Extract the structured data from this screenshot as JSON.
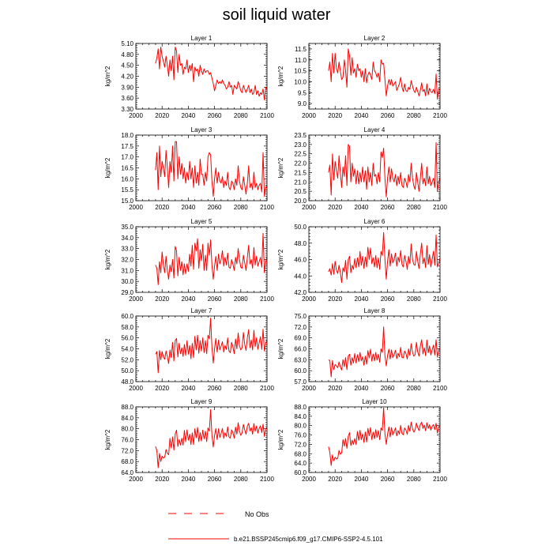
{
  "title": "soil liquid water",
  "colors": {
    "series": "#ff0000",
    "axis": "#000000"
  },
  "legend": {
    "obs_label": "No Obs",
    "model_label": "b.e21.BSSP245cmip6.f09_g17.CMIP6-SSP2-4.5.101"
  },
  "chart_data": [
    {
      "type": "line",
      "title": "Layer 1",
      "xlabel": "",
      "ylabel": "kg/m^2",
      "xlim": [
        2000,
        2100
      ],
      "xticks": [
        2000,
        2020,
        2040,
        2060,
        2080,
        2100
      ],
      "ylim": [
        3.3,
        5.1
      ],
      "yticks": [
        3.3,
        3.6,
        3.9,
        4.2,
        4.5,
        4.8,
        5.1
      ],
      "ydecimals": 2,
      "x_start": 2015,
      "y": [
        4.55,
        4.7,
        4.95,
        4.4,
        5.0,
        4.75,
        4.6,
        4.45,
        4.75,
        4.5,
        4.2,
        4.65,
        4.35,
        4.75,
        4.1,
        5.0,
        4.9,
        4.3,
        4.8,
        4.5,
        4.55,
        4.25,
        4.45,
        4.4,
        4.65,
        4.3,
        4.5,
        4.35,
        4.55,
        4.05,
        4.45,
        4.35,
        4.4,
        4.2,
        4.5,
        4.35,
        4.25,
        4.4,
        4.3,
        4.35,
        4.35,
        4.25,
        4.3,
        4.15,
        4.0,
        3.8,
        3.95,
        4.1,
        4.0,
        4.05,
        4.0,
        4.1,
        4.0,
        3.95,
        3.85,
        3.9,
        4.05,
        3.9,
        3.95,
        3.7,
        3.95,
        3.9,
        3.85,
        4.05,
        3.95,
        3.8,
        3.75,
        3.95,
        3.85,
        3.75,
        3.85,
        3.95,
        3.75,
        3.85,
        3.7,
        3.75,
        3.95,
        3.7,
        3.8,
        3.65,
        3.75,
        3.7,
        3.85,
        3.55,
        3.9,
        3.85
      ]
    },
    {
      "type": "line",
      "title": "Layer 2",
      "xlabel": "",
      "ylabel": "kg/m^2",
      "xlim": [
        2000,
        2100
      ],
      "xticks": [
        2000,
        2020,
        2040,
        2060,
        2080,
        2100
      ],
      "ylim": [
        8.75,
        11.75
      ],
      "yticks": [
        9.0,
        9.5,
        10.0,
        10.5,
        11.0,
        11.5
      ],
      "ydecimals": 1,
      "x_start": 2015,
      "y": [
        10.5,
        10.9,
        10.0,
        11.3,
        10.4,
        11.3,
        10.6,
        10.4,
        10.9,
        10.5,
        10.1,
        10.2,
        11.0,
        10.5,
        9.75,
        11.5,
        11.2,
        10.3,
        11.1,
        10.4,
        10.6,
        10.2,
        10.8,
        10.5,
        10.6,
        10.2,
        10.5,
        10.0,
        10.6,
        9.95,
        10.3,
        10.45,
        10.3,
        10.1,
        10.9,
        10.5,
        10.4,
        10.2,
        10.4,
        10.0,
        11.0,
        10.8,
        10.85,
        10.1,
        9.35,
        9.8,
        10.1,
        9.85,
        10.1,
        9.8,
        9.9,
        10.0,
        9.6,
        9.75,
        9.9,
        10.2,
        9.75,
        9.55,
        9.9,
        9.6,
        9.55,
        9.75,
        9.65,
        10.05,
        9.8,
        9.6,
        9.5,
        9.75,
        9.55,
        9.35,
        9.6,
        9.95,
        9.55,
        9.65,
        9.35,
        9.9,
        9.4,
        9.7,
        9.55,
        9.5,
        9.65,
        9.45,
        10.35,
        9.2,
        9.7,
        9.6
      ]
    },
    {
      "type": "line",
      "title": "Layer 3",
      "xlabel": "",
      "ylabel": "kg/m^2",
      "xlim": [
        2000,
        2100
      ],
      "xticks": [
        2000,
        2020,
        2040,
        2060,
        2080,
        2100
      ],
      "ylim": [
        15.0,
        18.0
      ],
      "yticks": [
        15.0,
        15.5,
        16.0,
        16.5,
        17.0,
        17.5,
        18.0
      ],
      "ydecimals": 1,
      "x_start": 2015,
      "y": [
        16.4,
        17.2,
        15.5,
        17.5,
        16.1,
        16.8,
        16.5,
        16.1,
        17.3,
        16.5,
        15.6,
        16.8,
        16.3,
        17.5,
        15.9,
        17.7,
        17.7,
        16.0,
        17.0,
        16.2,
        16.7,
        16.0,
        16.5,
        15.8,
        16.3,
        15.95,
        16.8,
        16.0,
        16.5,
        15.6,
        16.6,
        15.8,
        16.3,
        15.7,
        16.9,
        16.2,
        16.2,
        15.7,
        16.3,
        15.9,
        17.0,
        17.2,
        17.1,
        15.9,
        15.2,
        16.0,
        16.5,
        15.8,
        16.3,
        15.9,
        15.8,
        16.1,
        15.6,
        15.9,
        15.7,
        16.3,
        15.6,
        15.5,
        15.9,
        15.8,
        15.5,
        16.0,
        15.7,
        16.6,
        15.9,
        15.6,
        15.5,
        16.1,
        15.7,
        15.3,
        15.8,
        16.6,
        15.6,
        15.8,
        15.5,
        16.3,
        15.6,
        15.8,
        15.5,
        15.7,
        15.8,
        15.4,
        17.2,
        15.2,
        15.6,
        15.7
      ]
    },
    {
      "type": "line",
      "title": "Layer 4",
      "xlabel": "",
      "ylabel": "kg/m^2",
      "xlim": [
        2000,
        2100
      ],
      "xticks": [
        2000,
        2020,
        2040,
        2060,
        2080,
        2100
      ],
      "ylim": [
        20.0,
        23.5
      ],
      "yticks": [
        20.0,
        20.5,
        21.0,
        21.5,
        22.0,
        22.5,
        23.0,
        23.5
      ],
      "ydecimals": 1,
      "x_start": 2015,
      "y": [
        21.5,
        21.9,
        20.3,
        22.5,
        21.1,
        22.1,
        21.6,
        21.2,
        22.4,
        21.5,
        20.7,
        21.8,
        21.3,
        22.4,
        20.8,
        23.0,
        22.9,
        21.0,
        22.0,
        21.3,
        21.7,
        20.9,
        21.6,
        20.9,
        21.5,
        21.0,
        21.8,
        21.0,
        21.6,
        20.6,
        21.8,
        21.0,
        21.5,
        20.8,
        22.0,
        21.3,
        21.4,
        20.9,
        21.5,
        21.0,
        22.6,
        22.3,
        22.8,
        21.2,
        20.2,
        21.2,
        21.8,
        21.0,
        21.7,
        21.2,
        21.0,
        21.4,
        20.8,
        21.3,
        20.9,
        21.5,
        20.8,
        20.7,
        21.2,
        21.0,
        20.7,
        21.4,
        21.0,
        22.0,
        21.2,
        20.8,
        20.6,
        21.5,
        21.0,
        20.5,
        21.2,
        22.0,
        20.9,
        21.2,
        20.8,
        21.8,
        20.9,
        21.3,
        20.8,
        21.0,
        21.2,
        20.7,
        23.1,
        20.5,
        21.0,
        21.2
      ]
    },
    {
      "type": "line",
      "title": "Layer 5",
      "xlabel": "",
      "ylabel": "kg/m^2",
      "xlim": [
        2000,
        2100
      ],
      "xticks": [
        2000,
        2020,
        2040,
        2060,
        2080,
        2100
      ],
      "ylim": [
        29.0,
        35.0
      ],
      "yticks": [
        29.0,
        30.0,
        31.0,
        32.0,
        33.0,
        34.0,
        35.0
      ],
      "ydecimals": 1,
      "x_start": 2015,
      "y": [
        31.5,
        31.2,
        29.7,
        31.8,
        30.8,
        32.7,
        31.5,
        30.8,
        32.3,
        31.0,
        30.2,
        31.5,
        30.9,
        32.0,
        30.3,
        33.2,
        32.8,
        30.5,
        32.2,
        31.0,
        31.8,
        30.6,
        31.6,
        30.7,
        31.6,
        30.9,
        32.5,
        31.4,
        33.3,
        31.1,
        33.5,
        32.8,
        33.9,
        31.2,
        32.9,
        31.9,
        33.4,
        31.0,
        32.4,
        31.0,
        33.5,
        32.4,
        33.8,
        31.5,
        30.2,
        31.4,
        32.3,
        31.0,
        32.5,
        31.6,
        32.0,
        32.8,
        31.4,
        32.2,
        31.5,
        32.6,
        31.3,
        31.2,
        32.0,
        31.6,
        31.0,
        32.2,
        31.6,
        33.0,
        32.0,
        31.3,
        31.2,
        32.4,
        31.7,
        31.0,
        32.2,
        33.3,
        31.6,
        32.0,
        31.2,
        33.1,
        31.5,
        32.3,
        31.4,
        31.8,
        32.2,
        31.3,
        34.4,
        30.8,
        31.8,
        32.2
      ]
    },
    {
      "type": "line",
      "title": "Layer 6",
      "xlabel": "",
      "ylabel": "kg/m^2",
      "xlim": [
        2000,
        2100
      ],
      "xticks": [
        2000,
        2020,
        2040,
        2060,
        2080,
        2100
      ],
      "ylim": [
        42.0,
        50.0
      ],
      "yticks": [
        42.0,
        44.0,
        46.0,
        48.0,
        50.0
      ],
      "ydecimals": 1,
      "x_start": 2015,
      "y": [
        44.5,
        44.9,
        44.1,
        45.5,
        44.2,
        45.8,
        44.7,
        44.3,
        45.3,
        44.4,
        43.2,
        45.0,
        44.5,
        45.9,
        43.6,
        46.0,
        46.4,
        44.4,
        45.3,
        44.8,
        46.1,
        45.0,
        46.2,
        45.1,
        47.0,
        45.3,
        46.4,
        44.9,
        46.3,
        45.1,
        47.5,
        46.0,
        47.4,
        45.5,
        46.2,
        45.1,
        46.5,
        45.0,
        46.2,
        44.8,
        47.0,
        46.5,
        49.3,
        46.0,
        43.6,
        45.8,
        47.2,
        45.2,
        46.7,
        45.6,
        46.0,
        46.8,
        45.2,
        46.3,
        45.7,
        47.1,
        45.4,
        45.1,
        46.5,
        45.8,
        44.8,
        46.4,
        45.5,
        47.9,
        46.0,
        45.4,
        45.3,
        47.0,
        45.8,
        44.9,
        46.7,
        48.0,
        45.5,
        46.2,
        45.0,
        47.7,
        45.4,
        46.6,
        45.1,
        46.0,
        47.0,
        45.3,
        49.0,
        45.1,
        45.6,
        46.2
      ]
    },
    {
      "type": "line",
      "title": "Layer 7",
      "xlabel": "",
      "ylabel": "kg/m^2",
      "xlim": [
        2000,
        2100
      ],
      "xticks": [
        2000,
        2020,
        2040,
        2060,
        2080,
        2100
      ],
      "ylim": [
        48.0,
        60.0
      ],
      "yticks": [
        48.0,
        50.0,
        52.0,
        54.0,
        56.0,
        58.0,
        60.0
      ],
      "ydecimals": 1,
      "x_start": 2015,
      "y": [
        53.0,
        53.5,
        49.6,
        53.7,
        52.0,
        53.5,
        52.5,
        52.1,
        53.6,
        52.6,
        51.3,
        53.8,
        52.4,
        55.2,
        51.8,
        55.5,
        55.9,
        52.5,
        55.0,
        53.1,
        54.2,
        52.6,
        54.8,
        52.8,
        55.5,
        53.0,
        54.6,
        52.2,
        55.0,
        52.4,
        56.3,
        53.8,
        56.5,
        53.2,
        55.5,
        53.6,
        56.0,
        53.3,
        55.5,
        53.1,
        56.5,
        55.8,
        59.6,
        54.3,
        51.4,
        54.0,
        55.9,
        53.4,
        55.6,
        53.8,
        54.5,
        55.3,
        53.4,
        54.6,
        53.9,
        56.0,
        53.6,
        53.3,
        55.2,
        54.4,
        53.1,
        55.8,
        54.0,
        56.9,
        54.6,
        53.8,
        54.2,
        57.0,
        54.8,
        53.7,
        56.0,
        57.5,
        54.2,
        55.6,
        53.8,
        57.4,
        54.4,
        56.0,
        53.9,
        55.1,
        56.2,
        53.9,
        57.6,
        53.6,
        55.0,
        55.6
      ]
    },
    {
      "type": "line",
      "title": "Layer 8",
      "xlabel": "",
      "ylabel": "kg/m^2",
      "xlim": [
        2000,
        2100
      ],
      "xticks": [
        2000,
        2020,
        2040,
        2060,
        2080,
        2100
      ],
      "ylim": [
        57.0,
        75.0
      ],
      "yticks": [
        57.0,
        60.0,
        63.0,
        66.0,
        69.0,
        72.0,
        75.0
      ],
      "ydecimals": 1,
      "x_start": 2015,
      "y": [
        63.0,
        62.7,
        58.3,
        62.8,
        60.3,
        61.7,
        61.3,
        60.8,
        62.4,
        61.0,
        60.2,
        63.0,
        61.1,
        63.6,
        60.3,
        64.0,
        64.5,
        61.5,
        63.6,
        62.1,
        64.7,
        62.1,
        64.4,
        62.5,
        65.0,
        62.7,
        63.8,
        61.5,
        64.0,
        61.8,
        65.5,
        63.5,
        65.9,
        62.6,
        64.6,
        62.7,
        65.0,
        62.9,
        64.5,
        62.3,
        66.0,
        65.0,
        72.0,
        64.1,
        61.3,
        64.2,
        65.9,
        63.2,
        65.7,
        63.6,
        64.4,
        65.6,
        63.3,
        64.8,
        63.8,
        66.4,
        63.6,
        63.5,
        65.4,
        64.7,
        63.2,
        66.0,
        64.2,
        67.4,
        65.0,
        64.0,
        64.4,
        67.8,
        65.1,
        64.0,
        66.8,
        68.5,
        64.6,
        66.3,
        64.1,
        68.4,
        64.9,
        66.8,
        64.3,
        65.7,
        67.0,
        64.3,
        68.5,
        63.7,
        65.6,
        66.3
      ]
    },
    {
      "type": "line",
      "title": "Layer 9",
      "xlabel": "",
      "ylabel": "kg/m^2",
      "xlim": [
        2000,
        2100
      ],
      "xticks": [
        2000,
        2020,
        2040,
        2060,
        2080,
        2100
      ],
      "ylim": [
        64.0,
        88.0
      ],
      "yticks": [
        64.0,
        68.0,
        72.0,
        76.0,
        80.0,
        84.0,
        88.0
      ],
      "ydecimals": 1,
      "x_start": 2015,
      "y": [
        73.5,
        72.0,
        65.7,
        71.0,
        68.0,
        70.0,
        69.3,
        69.6,
        72.4,
        71.0,
        70.5,
        76.5,
        73.0,
        77.0,
        72.2,
        78.0,
        79.5,
        73.5,
        76.0,
        74.0,
        76.5,
        74.0,
        79.4,
        75.3,
        79.6,
        75.8,
        78.0,
        74.2,
        78.5,
        74.2,
        80.0,
        76.7,
        80.5,
        75.3,
        78.6,
        75.5,
        79.5,
        76.3,
        79.1,
        75.3,
        80.3,
        79.1,
        87.0,
        77.6,
        73.3,
        77.5,
        80.1,
        76.0,
        80.0,
        76.8,
        78.3,
        80.1,
        76.5,
        78.5,
        77.2,
        80.7,
        77.0,
        76.6,
        79.6,
        78.6,
        76.5,
        80.6,
        78.0,
        82.2,
        79.2,
        77.6,
        78.5,
        81.6,
        79.6,
        78.0,
        81.0,
        82.0,
        79.2,
        80.4,
        78.0,
        81.9,
        79.1,
        81.0,
        78.4,
        80.1,
        81.1,
        78.6,
        81.7,
        77.2,
        80.0,
        80.4
      ]
    },
    {
      "type": "line",
      "title": "Layer 10",
      "xlabel": "",
      "ylabel": "kg/m^2",
      "xlim": [
        2000,
        2100
      ],
      "xticks": [
        2000,
        2020,
        2040,
        2060,
        2080,
        2100
      ],
      "ylim": [
        60.0,
        88.0
      ],
      "yticks": [
        60.0,
        64.0,
        68.0,
        72.0,
        76.0,
        80.0,
        84.0,
        88.0
      ],
      "ydecimals": 1,
      "x_start": 2015,
      "y": [
        71.0,
        68.5,
        63.0,
        67.5,
        65.0,
        66.5,
        65.7,
        66.0,
        69.4,
        67.8,
        68.4,
        74.0,
        71.2,
        74.5,
        70.3,
        75.4,
        77.0,
        71.5,
        73.8,
        72.0,
        74.5,
        71.9,
        77.5,
        73.7,
        78.0,
        74.0,
        76.5,
        72.8,
        77.3,
        73.0,
        78.8,
        75.6,
        79.2,
        74.0,
        77.2,
        74.4,
        78.3,
        75.0,
        77.9,
        74.0,
        79.0,
        78.0,
        87.6,
        76.5,
        72.0,
        76.4,
        79.4,
        75.2,
        79.2,
        76.0,
        77.5,
        79.0,
        75.6,
        77.9,
        76.4,
        80.1,
        76.6,
        76.1,
        79.0,
        78.1,
        76.3,
        80.1,
        77.6,
        81.5,
        78.7,
        77.2,
        78.2,
        81.1,
        79.2,
        77.9,
        80.5,
        81.5,
        78.8,
        80.2,
        77.8,
        81.2,
        78.8,
        80.4,
        78.1,
        79.7,
        80.4,
        78.3,
        81.0,
        76.8,
        79.5,
        80.0
      ]
    }
  ]
}
